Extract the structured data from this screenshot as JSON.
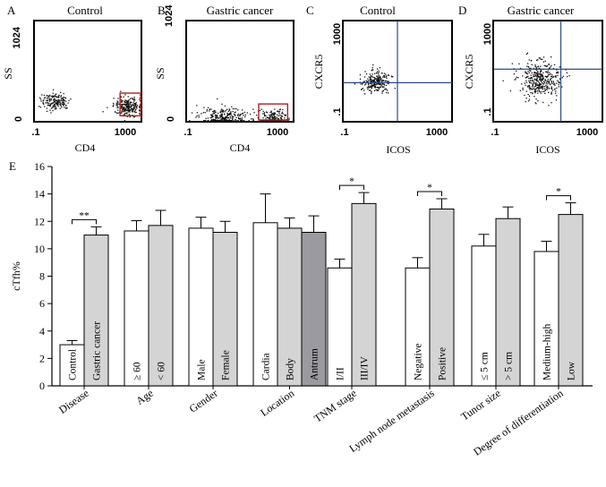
{
  "panels": {
    "A": {
      "letter": "A",
      "title": "Control",
      "xlabel": "CD4",
      "ylabel": "SS",
      "xticks": [
        ".1",
        "1000"
      ],
      "yticks": [
        "1024",
        "0"
      ]
    },
    "B": {
      "letter": "B",
      "title": "Gastric cancer",
      "xlabel": "CD4",
      "ylabel": "SS",
      "xticks": [
        ".1",
        "1000"
      ],
      "yticks": [
        "1024",
        "0"
      ]
    },
    "C": {
      "letter": "C",
      "title": "Control",
      "xlabel": "ICOS",
      "ylabel": "CXCR5",
      "xticks": [
        ".1",
        "1000"
      ],
      "yticks": [
        "1000",
        ".1"
      ]
    },
    "D": {
      "letter": "D",
      "title": "Gastric cancer",
      "xlabel": "ICOS",
      "ylabel": "CXCR5",
      "xticks": [
        ".1",
        "1000"
      ],
      "yticks": [
        "1000",
        ".1"
      ]
    },
    "E": {
      "letter": "E"
    }
  },
  "chart_data": [
    {
      "type": "scatter",
      "panel": "A",
      "title": "Control",
      "xlabel": "CD4",
      "ylabel": "SS",
      "x_scale": "log",
      "xlim": [
        0.1,
        1000
      ],
      "ylim": [
        0,
        1024
      ],
      "clusters": [
        {
          "center_x": 0.6,
          "center_y": 210,
          "count": 170
        },
        {
          "center_x": 300,
          "center_y": 160,
          "count": 240
        }
      ],
      "gate": {
        "x": [
          160,
          950
        ],
        "y": [
          60,
          290
        ],
        "color": "#b02020"
      }
    },
    {
      "type": "scatter",
      "panel": "B",
      "title": "Gastric cancer",
      "xlabel": "CD4",
      "ylabel": "SS",
      "x_scale": "log",
      "xlim": [
        0.1,
        1000
      ],
      "ylim": [
        0,
        1024
      ],
      "clusters": [
        {
          "center_x": 2.5,
          "center_y": 55,
          "count": 260
        },
        {
          "center_x": 150,
          "center_y": 45,
          "count": 150
        }
      ],
      "gate": {
        "x": [
          50,
          600
        ],
        "y": [
          0,
          180
        ],
        "color": "#b02020"
      }
    },
    {
      "type": "scatter",
      "panel": "C",
      "title": "Control",
      "xlabel": "ICOS",
      "ylabel": "CXCR5",
      "x_scale": "log",
      "y_scale": "log",
      "xlim": [
        0.1,
        1000
      ],
      "ylim": [
        0.1,
        1000
      ],
      "clusters": [
        {
          "center_x": 1.6,
          "center_y": 4,
          "count": 230
        }
      ],
      "quadrant_lines": {
        "x": 10,
        "y": 3.5,
        "color": "#2a4a8a"
      }
    },
    {
      "type": "scatter",
      "panel": "D",
      "title": "Gastric cancer",
      "xlabel": "ICOS",
      "ylabel": "CXCR5",
      "x_scale": "log",
      "y_scale": "log",
      "xlim": [
        0.1,
        1000
      ],
      "ylim": [
        0.1,
        1000
      ],
      "clusters": [
        {
          "center_x": 5,
          "center_y": 5,
          "count": 380
        }
      ],
      "quadrant_lines": {
        "x": 30,
        "y": 12,
        "color": "#2a4a8a"
      }
    },
    {
      "type": "bar",
      "panel": "E",
      "ylabel": "cTfh%",
      "ylim": [
        0,
        16
      ],
      "yticks": [
        "0",
        "2",
        "4",
        "6",
        "8",
        "10",
        "12",
        "14",
        "16"
      ],
      "colors": {
        "white": "#ffffff",
        "gray": "#d4d4d4",
        "dark": "#9a9aa0"
      },
      "groups": [
        {
          "label": "Disease",
          "bars": [
            {
              "label": "Control",
              "value": 3.0,
              "err": 0.3,
              "fill": "white"
            },
            {
              "label": "Gastric cancer",
              "value": 11.0,
              "err": 0.6,
              "fill": "gray"
            }
          ],
          "sig": "**"
        },
        {
          "label": "Age",
          "bars": [
            {
              "label": "≥ 60",
              "value": 11.3,
              "err": 0.75,
              "fill": "white"
            },
            {
              "label": "< 60",
              "value": 11.7,
              "err": 1.1,
              "fill": "gray"
            }
          ]
        },
        {
          "label": "Gender",
          "bars": [
            {
              "label": "Male",
              "value": 11.5,
              "err": 0.8,
              "fill": "white"
            },
            {
              "label": "Female",
              "value": 11.2,
              "err": 0.8,
              "fill": "gray"
            }
          ]
        },
        {
          "label": "Location",
          "bars": [
            {
              "label": "Cardia",
              "value": 11.9,
              "err": 2.1,
              "fill": "white"
            },
            {
              "label": "Body",
              "value": 11.5,
              "err": 0.75,
              "fill": "gray"
            },
            {
              "label": "Antrum",
              "value": 11.2,
              "err": 1.2,
              "fill": "dark"
            }
          ]
        },
        {
          "label": "TNM stage",
          "bars": [
            {
              "label": "I/II",
              "value": 8.6,
              "err": 0.65,
              "fill": "white"
            },
            {
              "label": "III/IV",
              "value": 13.3,
              "err": 0.8,
              "fill": "gray"
            }
          ],
          "sig": "*"
        },
        {
          "label": "Lymph node metastasis",
          "bars": [
            {
              "label": "Negative",
              "value": 8.6,
              "err": 0.75,
              "fill": "white"
            },
            {
              "label": "Positive",
              "value": 12.9,
              "err": 0.75,
              "fill": "gray"
            }
          ],
          "sig": "*"
        },
        {
          "label": "Tunor size",
          "bars": [
            {
              "label": "≤ 5 cm",
              "value": 10.2,
              "err": 0.85,
              "fill": "white"
            },
            {
              "label": "> 5 cm",
              "value": 12.2,
              "err": 0.85,
              "fill": "gray"
            }
          ]
        },
        {
          "label": "Degree of differentiation",
          "bars": [
            {
              "label": "Medium-high",
              "value": 9.8,
              "err": 0.75,
              "fill": "white"
            },
            {
              "label": "Low",
              "value": 12.5,
              "err": 0.85,
              "fill": "gray"
            }
          ],
          "sig": "*"
        }
      ]
    }
  ]
}
